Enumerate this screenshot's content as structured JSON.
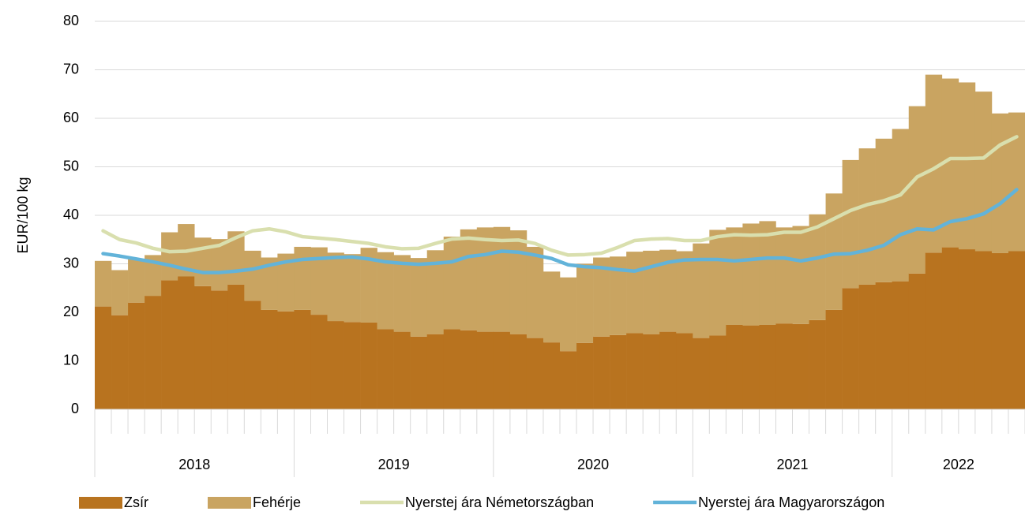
{
  "chart_data": {
    "type": "stacked_bar_line",
    "y_label": "EUR/100 kg",
    "categories": [
      null,
      null,
      null,
      null,
      null,
      null,
      null,
      null,
      null,
      null,
      null,
      null,
      null,
      null,
      null,
      null,
      null,
      null,
      null,
      null,
      null,
      null,
      null,
      null,
      null,
      null,
      null,
      null,
      null,
      null,
      null,
      null,
      null,
      null,
      null,
      null,
      null,
      null,
      null,
      null,
      null,
      null,
      null,
      null,
      null,
      null,
      null,
      null,
      null,
      null,
      null,
      null,
      null,
      null,
      null,
      null
    ],
    "x_groups": [
      "2018",
      "2019",
      "2020",
      "2021",
      "2022"
    ],
    "ylim": [
      0,
      80
    ],
    "yticks": [
      0,
      10,
      20,
      30,
      40,
      50,
      60,
      70,
      80
    ],
    "grid": true,
    "series": [
      {
        "name": "Zsír",
        "kind": "bar",
        "color": "#b8731f",
        "values": [
          21.2,
          19.4,
          22,
          23.4,
          26.6,
          27.4,
          25.4,
          24.5,
          25.7,
          22.4,
          20.5,
          20.2,
          20.5,
          19.5,
          18.2,
          18,
          17.9,
          16.5,
          16,
          15,
          15.5,
          16.5,
          16.3,
          16,
          16,
          15.5,
          14.7,
          13.8,
          12,
          13.7,
          15,
          15.3,
          15.7,
          15.5,
          16,
          15.7,
          14.7,
          15.2,
          17.4,
          17.3,
          17.4,
          17.7,
          17.6,
          18.4,
          20.5,
          25,
          25.7,
          26.2,
          26.4,
          28,
          32.3,
          33.4,
          33,
          32.6,
          32.2,
          32.6
        ]
      },
      {
        "name": "Fehérje",
        "kind": "bar",
        "color": "#c9a461",
        "values": [
          9.4,
          9.3,
          9,
          8.4,
          9.9,
          10.8,
          10,
          10.6,
          11,
          10.3,
          10.8,
          11.9,
          13,
          13.9,
          14.1,
          14,
          15.4,
          15.9,
          15.8,
          16.2,
          17.3,
          19.1,
          20.8,
          21.5,
          21.6,
          21.4,
          18.8,
          14.6,
          15.2,
          16.3,
          16.3,
          16.2,
          16.8,
          17.2,
          16.9,
          16.9,
          19.5,
          21.8,
          20.1,
          21,
          21.4,
          19.8,
          20.2,
          21.8,
          24,
          26.4,
          28.1,
          29.6,
          31.4,
          34.5,
          36.7,
          34.8,
          34.4,
          32.9,
          28.8,
          28.6
        ]
      },
      {
        "name": "Nyerstej ára Németországban",
        "kind": "line",
        "color": "#d9dfae",
        "values": [
          36.8,
          35,
          34.3,
          33.2,
          32.5,
          32.6,
          33.2,
          33.8,
          35.4,
          36.8,
          37.2,
          36.6,
          35.6,
          35.3,
          35,
          34.6,
          34.2,
          33.5,
          33.1,
          33.2,
          34.2,
          35.1,
          35.3,
          35,
          34.8,
          34.9,
          34.2,
          32.8,
          31.8,
          31.9,
          32.2,
          33.4,
          34.8,
          35.1,
          35.2,
          34.8,
          34.8,
          35.6,
          36,
          35.9,
          36,
          36.5,
          36.5,
          37.6,
          39.3,
          41,
          42.2,
          43,
          44.2,
          47.9,
          49.6,
          51.7,
          51.7,
          51.8,
          54.5,
          56.2
        ]
      },
      {
        "name": "Nyerstej ára Magyarországon",
        "kind": "line",
        "color": "#62b3d9",
        "values": [
          32.1,
          31.6,
          31,
          30.4,
          29.7,
          28.9,
          28.2,
          28.2,
          28.5,
          28.9,
          29.7,
          30.4,
          30.9,
          31.1,
          31.3,
          31.4,
          31,
          30.4,
          30.1,
          29.9,
          30.1,
          30.4,
          31.5,
          31.9,
          32.6,
          32.4,
          31.8,
          31.1,
          29.8,
          29.4,
          29.2,
          28.8,
          28.5,
          29.4,
          30.3,
          30.8,
          30.9,
          30.9,
          30.6,
          30.9,
          31.2,
          31.2,
          30.6,
          31.2,
          32,
          32.1,
          32.8,
          33.8,
          36,
          37.2,
          37,
          38.7,
          39.3,
          40.3,
          42.4,
          45.3
        ]
      }
    ]
  }
}
